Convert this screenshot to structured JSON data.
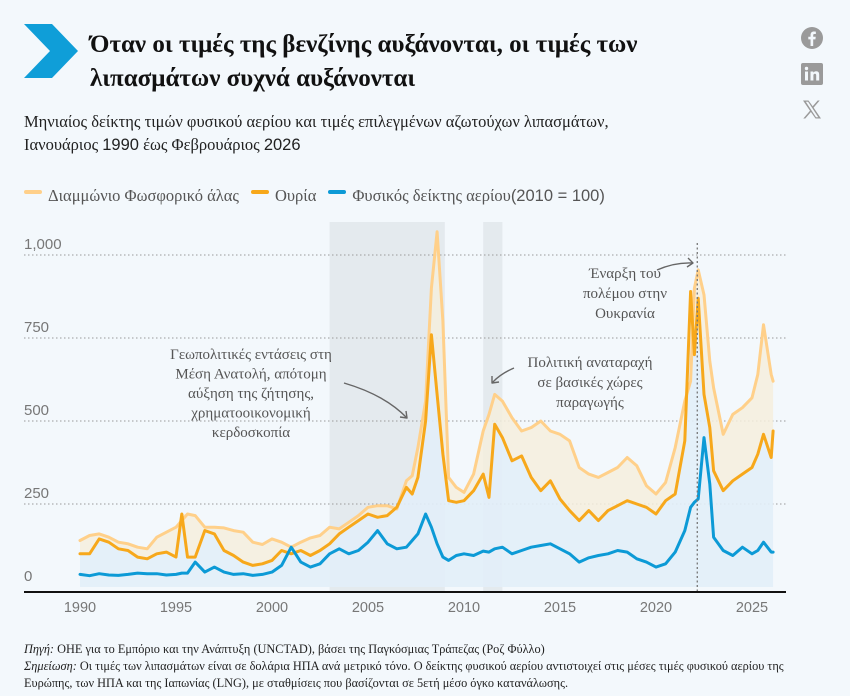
{
  "header": {
    "title": "Όταν οι τιμές της βενζίνης αυξάνονται, οι τιμές των λιπασμάτων συχνά αυξάνονται",
    "accent_color": "#0f9ed8"
  },
  "social": {
    "icons": [
      "facebook-icon",
      "linkedin-icon",
      "x-twitter-icon"
    ],
    "icon_color": "#9a9a9a"
  },
  "subtitle": {
    "line1": "Μηνιαίος δείκτης τιμών φυσικού αερίου και τιμές επιλεγμένων αζωτούχων λιπασμάτων,",
    "line2_prefix": "Ιανουάριος ",
    "start_year": "1990",
    "line2_mid": " έως Φεβρουάριος ",
    "end_year": "2026"
  },
  "legend": [
    {
      "label": "Διαμμώνιο Φωσφορικό άλας",
      "color": "#ffd08a"
    },
    {
      "label": "Ουρία",
      "color": "#f7a81b"
    },
    {
      "label": "Φυσικός δείκτης αερίου",
      "suffix": " (2010 = 100)",
      "color": "#0c9ad6"
    }
  ],
  "footer": {
    "source_label": "Πηγή:",
    "source_text": " ΟΗΕ για το Εμπόριο και την Ανάπτυξη (UNCTAD), βάσει της Παγκόσμιας Τράπεζας (Ροζ Φύλλο)",
    "note_label": "Σημείωση:",
    "note_text": " Οι τιμές των λιπασμάτων είναι σε δολάρια ΗΠΑ ανά μετρικό τόνο. Ο δείκτης φυσικού αερίου αντιστοιχεί στις μέσες τιμές φυσικού αερίου της Ευρώπης, των ΗΠΑ και της Ιαπωνίας (LNG), με σταθμίσεις που βασίζονται σε 5ετή μέσο όγκο κατανάλωσης."
  },
  "chart_data": {
    "type": "line",
    "title": "Όταν οι τιμές της βενζίνης αυξάνονται, οι τιμές των λιπασμάτων συχνά αυξάνονται",
    "xlabel": "",
    "ylabel": "",
    "xlim": [
      1987.5,
      2026.5
    ],
    "ylim": [
      0,
      1000
    ],
    "x_ticks": [
      1990,
      1995,
      2000,
      2005,
      2010,
      2015,
      2020,
      2025
    ],
    "x_tick_labels": [
      "1990",
      "1995",
      "2000",
      "2005",
      "2010",
      "2015",
      "2020",
      "2025"
    ],
    "y_ticks": [
      0,
      250,
      500,
      750,
      1000
    ],
    "y_tick_labels": [
      "0",
      "250",
      "500",
      "750",
      "1,000"
    ],
    "grid": "horizontal-dotted",
    "legend_position": "top-left",
    "shaded_periods": [
      {
        "start": 2003.0,
        "end": 2009.0
      },
      {
        "start": 2011.0,
        "end": 2012.0
      }
    ],
    "event_line": {
      "x": 2022.15
    },
    "annotations": [
      {
        "lines": [
          "Γεωπολιτικές εντάσεις στη",
          "Μέση Ανατολή, απότομη",
          "αύξηση της ζήτησης,",
          "χρηματοοικονομική",
          "κερδοσκοπία"
        ],
        "target_x": 2007.9,
        "target_y": 490
      },
      {
        "lines": [
          "Πολιτική αναταραχή",
          "σε βασικές χώρες",
          "παραγωγής"
        ],
        "target_x": 2011.6,
        "target_y": 590
      },
      {
        "lines": [
          "Έναρξη του",
          "πολέμου στην",
          "Ουκρανία"
        ],
        "target_x": 2022.1,
        "target_y": 945
      }
    ],
    "x": [
      1990.0,
      1990.5,
      1991.0,
      1991.5,
      1992.0,
      1992.5,
      1993.0,
      1993.5,
      1994.0,
      1994.5,
      1995.0,
      1995.3,
      1995.6,
      1996.0,
      1996.5,
      1997.0,
      1997.5,
      1998.0,
      1998.5,
      1999.0,
      1999.5,
      2000.0,
      2000.5,
      2001.0,
      2001.5,
      2002.0,
      2002.5,
      2003.0,
      2003.5,
      2004.0,
      2004.5,
      2005.0,
      2005.5,
      2006.0,
      2006.5,
      2007.0,
      2007.3,
      2007.6,
      2008.0,
      2008.3,
      2008.6,
      2008.9,
      2009.2,
      2009.6,
      2010.0,
      2010.5,
      2011.0,
      2011.3,
      2011.6,
      2012.0,
      2012.5,
      2013.0,
      2013.5,
      2014.0,
      2014.5,
      2015.0,
      2015.5,
      2016.0,
      2016.5,
      2017.0,
      2017.5,
      2018.0,
      2018.5,
      2019.0,
      2019.5,
      2020.0,
      2020.5,
      2021.0,
      2021.5,
      2021.8,
      2022.0,
      2022.2,
      2022.5,
      2022.8,
      2023.0,
      2023.5,
      2024.0,
      2024.5,
      2025.0,
      2025.3,
      2025.6,
      2026.0,
      2026.1
    ],
    "series": [
      {
        "name": "Διαμμώνιο Φωσφορικό άλας",
        "color": "#ffd08a",
        "values": [
          140,
          155,
          160,
          150,
          135,
          130,
          120,
          115,
          150,
          165,
          180,
          200,
          220,
          215,
          180,
          180,
          178,
          170,
          165,
          135,
          128,
          145,
          135,
          120,
          135,
          148,
          155,
          180,
          175,
          195,
          215,
          240,
          245,
          245,
          235,
          320,
          335,
          420,
          560,
          900,
          1070,
          800,
          330,
          300,
          285,
          340,
          470,
          520,
          580,
          560,
          510,
          470,
          480,
          500,
          470,
          460,
          440,
          360,
          340,
          330,
          345,
          360,
          390,
          365,
          305,
          280,
          315,
          420,
          560,
          620,
          900,
          955,
          880,
          680,
          600,
          460,
          520,
          540,
          570,
          640,
          790,
          640,
          620
        ]
      },
      {
        "name": "Ουρία",
        "color": "#f7a81b",
        "values": [
          100,
          100,
          145,
          135,
          115,
          110,
          90,
          85,
          100,
          105,
          90,
          220,
          90,
          90,
          170,
          160,
          110,
          95,
          75,
          65,
          70,
          80,
          110,
          100,
          110,
          95,
          110,
          130,
          160,
          180,
          200,
          220,
          210,
          215,
          240,
          300,
          280,
          330,
          500,
          760,
          580,
          400,
          260,
          255,
          260,
          290,
          340,
          270,
          490,
          450,
          380,
          395,
          330,
          290,
          320,
          265,
          230,
          200,
          230,
          200,
          230,
          245,
          260,
          250,
          240,
          220,
          260,
          280,
          440,
          890,
          700,
          870,
          580,
          480,
          350,
          290,
          320,
          340,
          360,
          400,
          460,
          390,
          470
        ]
      },
      {
        "name": "Φυσικός δείκτης αερίου (2010 = 100)",
        "color": "#0c9ad6",
        "values": [
          38,
          34,
          40,
          36,
          35,
          38,
          42,
          40,
          40,
          36,
          38,
          42,
          42,
          75,
          45,
          60,
          45,
          38,
          40,
          35,
          38,
          45,
          65,
          120,
          75,
          60,
          70,
          100,
          115,
          100,
          110,
          135,
          170,
          130,
          115,
          120,
          140,
          160,
          220,
          180,
          130,
          90,
          80,
          95,
          100,
          95,
          108,
          105,
          115,
          120,
          100,
          110,
          120,
          125,
          130,
          115,
          100,
          75,
          88,
          95,
          100,
          110,
          105,
          85,
          75,
          60,
          70,
          105,
          170,
          240,
          255,
          265,
          450,
          310,
          150,
          110,
          95,
          120,
          100,
          110,
          135,
          105,
          105
        ]
      }
    ]
  }
}
